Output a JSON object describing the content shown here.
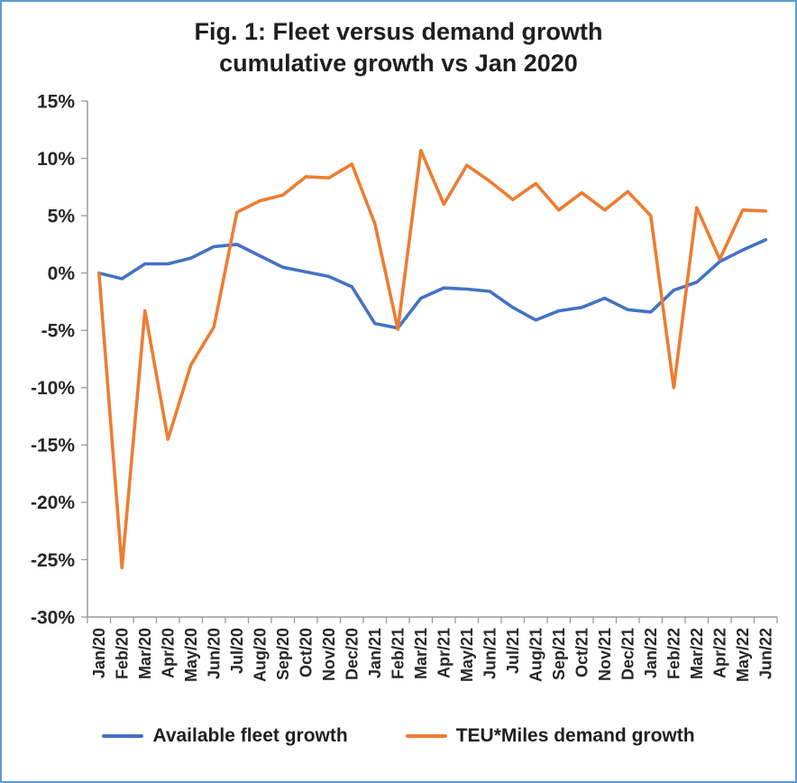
{
  "frame": {
    "border_color": "#5B9BD5",
    "background": "#ffffff"
  },
  "chart_data": {
    "type": "line",
    "title": "Fig. 1: Fleet versus demand growth",
    "subtitle": "cumulative growth vs Jan 2020",
    "xlabel": "",
    "ylabel": "",
    "ylim": [
      -30,
      15
    ],
    "yticks": [
      15,
      10,
      5,
      0,
      -5,
      -10,
      -15,
      -20,
      -25,
      -30
    ],
    "ytick_format": "percent",
    "grid": false,
    "legend_position": "bottom",
    "axis_color": "#9a9a9a",
    "x": [
      "Jan/20",
      "Feb/20",
      "Mar/20",
      "Apr/20",
      "May/20",
      "Jun/20",
      "Jul/20",
      "Aug/20",
      "Sep/20",
      "Oct/20",
      "Nov/20",
      "Dec/20",
      "Jan/21",
      "Feb/21",
      "Mar/21",
      "Apr/21",
      "May/21",
      "Jun/21",
      "Jul/21",
      "Aug/21",
      "Sep/21",
      "Oct/21",
      "Nov/21",
      "Dec/21",
      "Jan/22",
      "Feb/22",
      "Mar/22",
      "Apr/22",
      "May/22",
      "Jun/22"
    ],
    "series": [
      {
        "name": "Available fleet growth",
        "color": "#4472C4",
        "values": [
          0.0,
          -0.5,
          0.8,
          0.8,
          1.3,
          2.3,
          2.5,
          1.5,
          0.5,
          0.1,
          -0.3,
          -1.2,
          -4.4,
          -4.8,
          -2.2,
          -1.3,
          -1.4,
          -1.6,
          -3.0,
          -4.1,
          -3.3,
          -3.0,
          -2.2,
          -3.2,
          -3.4,
          -1.5,
          -0.8,
          1.0,
          2.0,
          2.9
        ]
      },
      {
        "name": "TEU*Miles demand growth",
        "color": "#ED7D31",
        "values": [
          0.0,
          -25.7,
          -3.3,
          -14.5,
          -8.0,
          -4.7,
          5.3,
          6.3,
          6.8,
          8.4,
          8.3,
          9.5,
          4.3,
          -4.9,
          10.7,
          6.0,
          9.4,
          8.0,
          6.4,
          7.8,
          5.5,
          7.0,
          5.5,
          7.1,
          5.0,
          -10.0,
          5.7,
          1.2,
          5.5,
          5.4
        ]
      }
    ]
  }
}
